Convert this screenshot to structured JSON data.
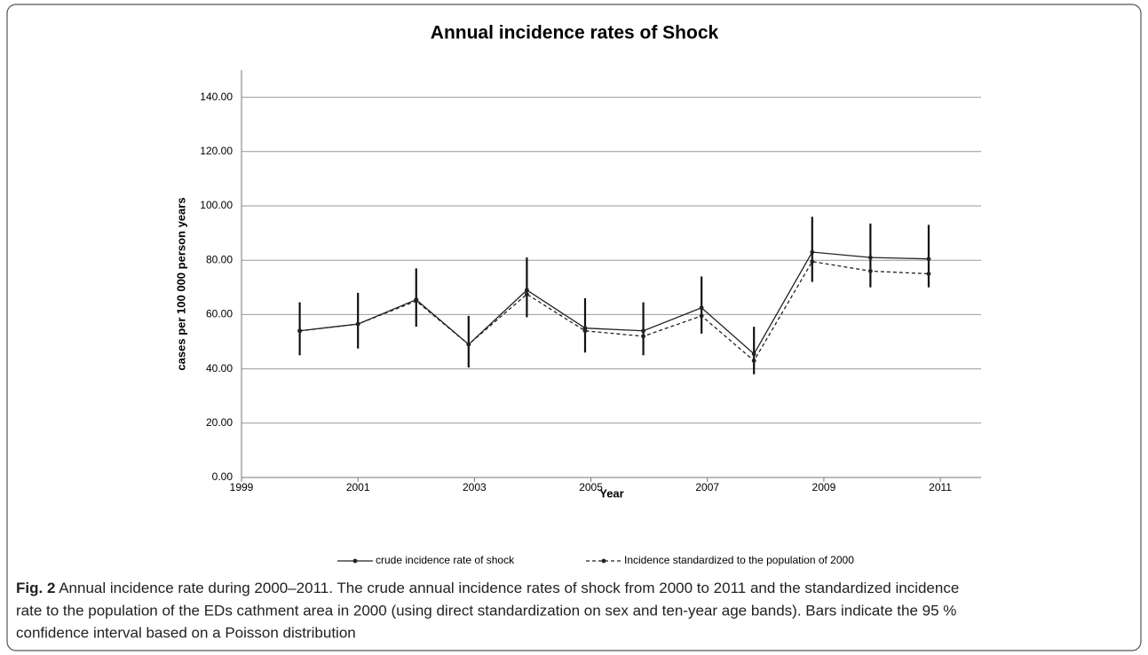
{
  "chart_data": {
    "type": "line",
    "title": "Annual incidence rates of Shock",
    "x_label": "Year",
    "y_label": "cases per 100 000 person years",
    "x": [
      2000,
      2001,
      2002,
      2002.9,
      2003.9,
      2004.9,
      2005.9,
      2006.9,
      2007.8,
      2008.8,
      2009.8,
      2010.8
    ],
    "series": [
      {
        "name": "crude incidence rate of shock",
        "color": "#222222",
        "dash": "solid",
        "values": [
          54,
          56.5,
          65.5,
          49,
          69,
          55,
          54,
          62.5,
          45.5,
          83,
          81,
          80.5
        ]
      },
      {
        "name": "Incidence standardized to the population of 2000",
        "color": "#222222",
        "dash": "dashed",
        "values": [
          54,
          56.5,
          65,
          49,
          67.5,
          54,
          52,
          59.5,
          43,
          79.5,
          76,
          75
        ]
      }
    ],
    "ci_low": [
      45,
      47.5,
      55.5,
      40.5,
      59,
      46,
      45,
      53,
      38,
      72,
      70,
      70
    ],
    "ci_high": [
      64.5,
      68,
      77,
      59.5,
      81,
      66,
      64.5,
      74,
      55.5,
      96,
      93.5,
      93
    ],
    "xlim": [
      1999,
      2011.7
    ],
    "xticks": [
      1999,
      2001,
      2003,
      2005,
      2007,
      2009,
      2011
    ],
    "ylim": [
      0,
      150
    ],
    "yticks": [
      {
        "value": 0,
        "label": "0.00"
      },
      {
        "value": 20,
        "label": "20.00"
      },
      {
        "value": 40,
        "label": "40.00"
      },
      {
        "value": 60,
        "label": "60.00"
      },
      {
        "value": 80,
        "label": "80.00"
      },
      {
        "value": 100,
        "label": "100.00"
      },
      {
        "value": 120,
        "label": "120.00"
      },
      {
        "value": 140,
        "label": "140.00"
      }
    ],
    "grid": true,
    "legend": "bottom",
    "caption": {
      "label": "Fig. 2",
      "lines": [
        "Annual incidence rate during 2000–2011. The crude annual incidence rates of shock from 2000 to 2011 and the standardized incidence",
        "rate to the population of the EDs cathment area in 2000 (using direct standardization on sex and ten-year age bands). Bars indicate the 95 %",
        "confidence interval based on a Poisson distribution"
      ]
    }
  }
}
